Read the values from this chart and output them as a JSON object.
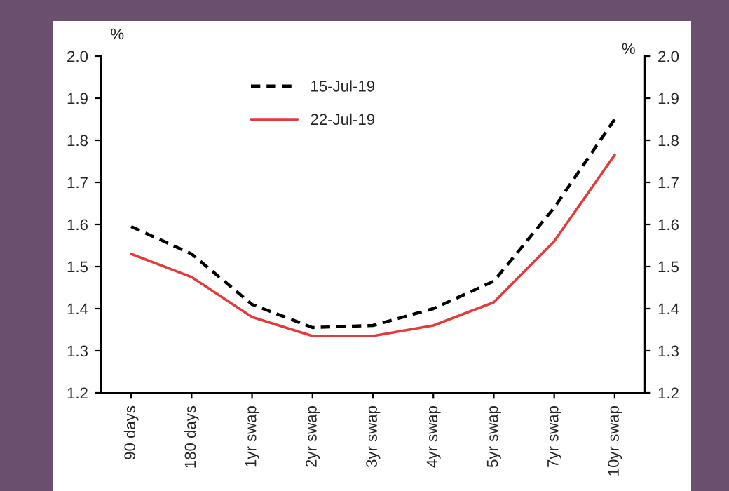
{
  "chart_data": {
    "type": "line",
    "categories": [
      "90 days",
      "180 days",
      "1yr swap",
      "2yr swap",
      "3yr swap",
      "4yr swap",
      "5yr swap",
      "7yr swap",
      "10yr swap"
    ],
    "series": [
      {
        "name": "15-Jul-19",
        "color": "#000000",
        "line_style": "dashed",
        "values": [
          1.595,
          1.53,
          1.41,
          1.355,
          1.36,
          1.4,
          1.465,
          1.64,
          1.85
        ]
      },
      {
        "name": "22-Jul-19",
        "color": "#e03c3c",
        "line_style": "solid",
        "values": [
          1.53,
          1.475,
          1.38,
          1.335,
          1.335,
          1.36,
          1.415,
          1.56,
          1.765
        ]
      }
    ],
    "ylabel": "%",
    "y2label": "%",
    "ylim": [
      1.2,
      2.0
    ],
    "yticks": [
      {
        "value": 1.2,
        "label": "1.2"
      },
      {
        "value": 1.3,
        "label": "1.3"
      },
      {
        "value": 1.4,
        "label": "1.4"
      },
      {
        "value": 1.5,
        "label": "1.5"
      },
      {
        "value": 1.6,
        "label": "1.6"
      },
      {
        "value": 1.7,
        "label": "1.7"
      },
      {
        "value": 1.8,
        "label": "1.8"
      },
      {
        "value": 1.9,
        "label": "1.9"
      },
      {
        "value": 2.0,
        "label": "2.0"
      }
    ],
    "y2lim": [
      1.2,
      2.0
    ],
    "y2ticks": [
      {
        "value": 1.2,
        "label": "1.2"
      },
      {
        "value": 1.3,
        "label": "1.3"
      },
      {
        "value": 1.4,
        "label": "1.4"
      },
      {
        "value": 1.5,
        "label": "1.5"
      },
      {
        "value": 1.6,
        "label": "1.6"
      },
      {
        "value": 1.7,
        "label": "1.7"
      },
      {
        "value": 1.8,
        "label": "1.8"
      },
      {
        "value": 1.9,
        "label": "1.9"
      },
      {
        "value": 2.0,
        "label": "2.0"
      }
    ],
    "grid": false,
    "legend": "top",
    "marker": "none"
  }
}
